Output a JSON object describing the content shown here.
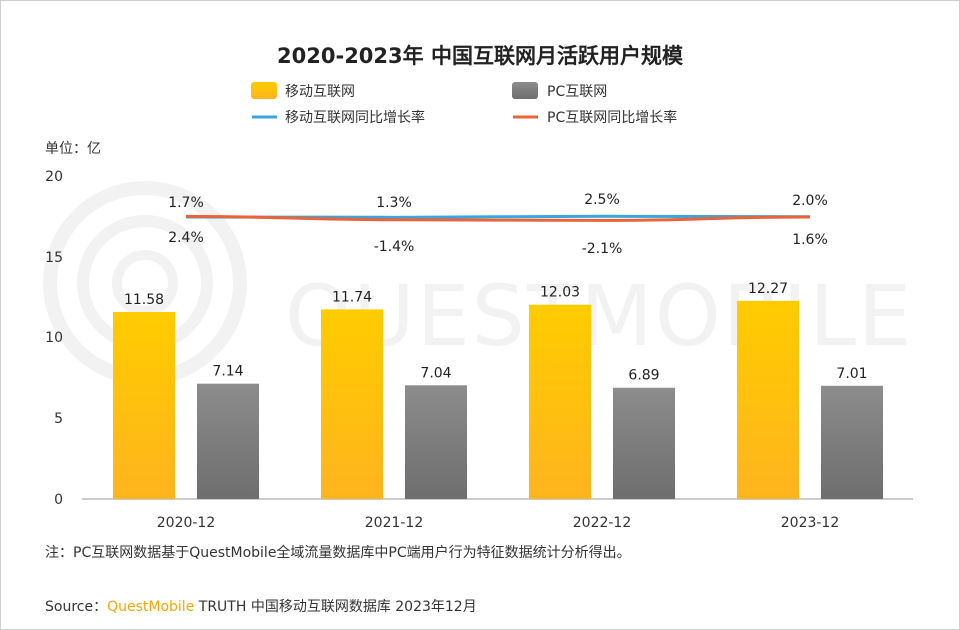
{
  "chart_data": {
    "type": "bar",
    "title": "2020-2023年 中国互联网月活跃用户规模",
    "unit_label": "单位：亿",
    "categories": [
      "2020-12",
      "2021-12",
      "2022-12",
      "2023-12"
    ],
    "series": [
      {
        "name": "移动互联网",
        "type": "bar",
        "values": [
          11.58,
          11.74,
          12.03,
          12.27
        ],
        "labels": [
          "11.58",
          "11.74",
          "12.03",
          "12.27"
        ],
        "color": "#ffc000"
      },
      {
        "name": "PC互联网",
        "type": "bar",
        "values": [
          7.14,
          7.04,
          6.89,
          7.01
        ],
        "labels": [
          "7.14",
          "7.04",
          "6.89",
          "7.01"
        ],
        "color": "#7f7f7f"
      },
      {
        "name": "移动互联网同比增长率",
        "type": "line",
        "values": [
          1.7,
          1.3,
          2.5,
          2.0
        ],
        "labels": [
          "1.7%",
          "1.3%",
          "2.5%",
          "2.0%"
        ],
        "color": "#3aa6dd"
      },
      {
        "name": "PC互联网同比增长率",
        "type": "line",
        "values": [
          2.4,
          -1.4,
          -2.1,
          1.6
        ],
        "labels": [
          "2.4%",
          "-1.4%",
          "-2.1%",
          "1.6%"
        ],
        "color": "#e8643a"
      }
    ],
    "y_ticks": [
      "20",
      "15",
      "10",
      "5",
      "0"
    ],
    "ylim": [
      0,
      20
    ],
    "legend": "top",
    "grid": false
  },
  "note": "注：PC互联网数据基于QuestMobile全域流量数据库中PC端用户行为特征数据统计分析得出。",
  "source": {
    "prefix": "Source：",
    "brand": "QuestMobile",
    "rest": " TRUTH 中国移动互联网数据库 2023年12月"
  },
  "watermark": "QUESTMOBILE"
}
